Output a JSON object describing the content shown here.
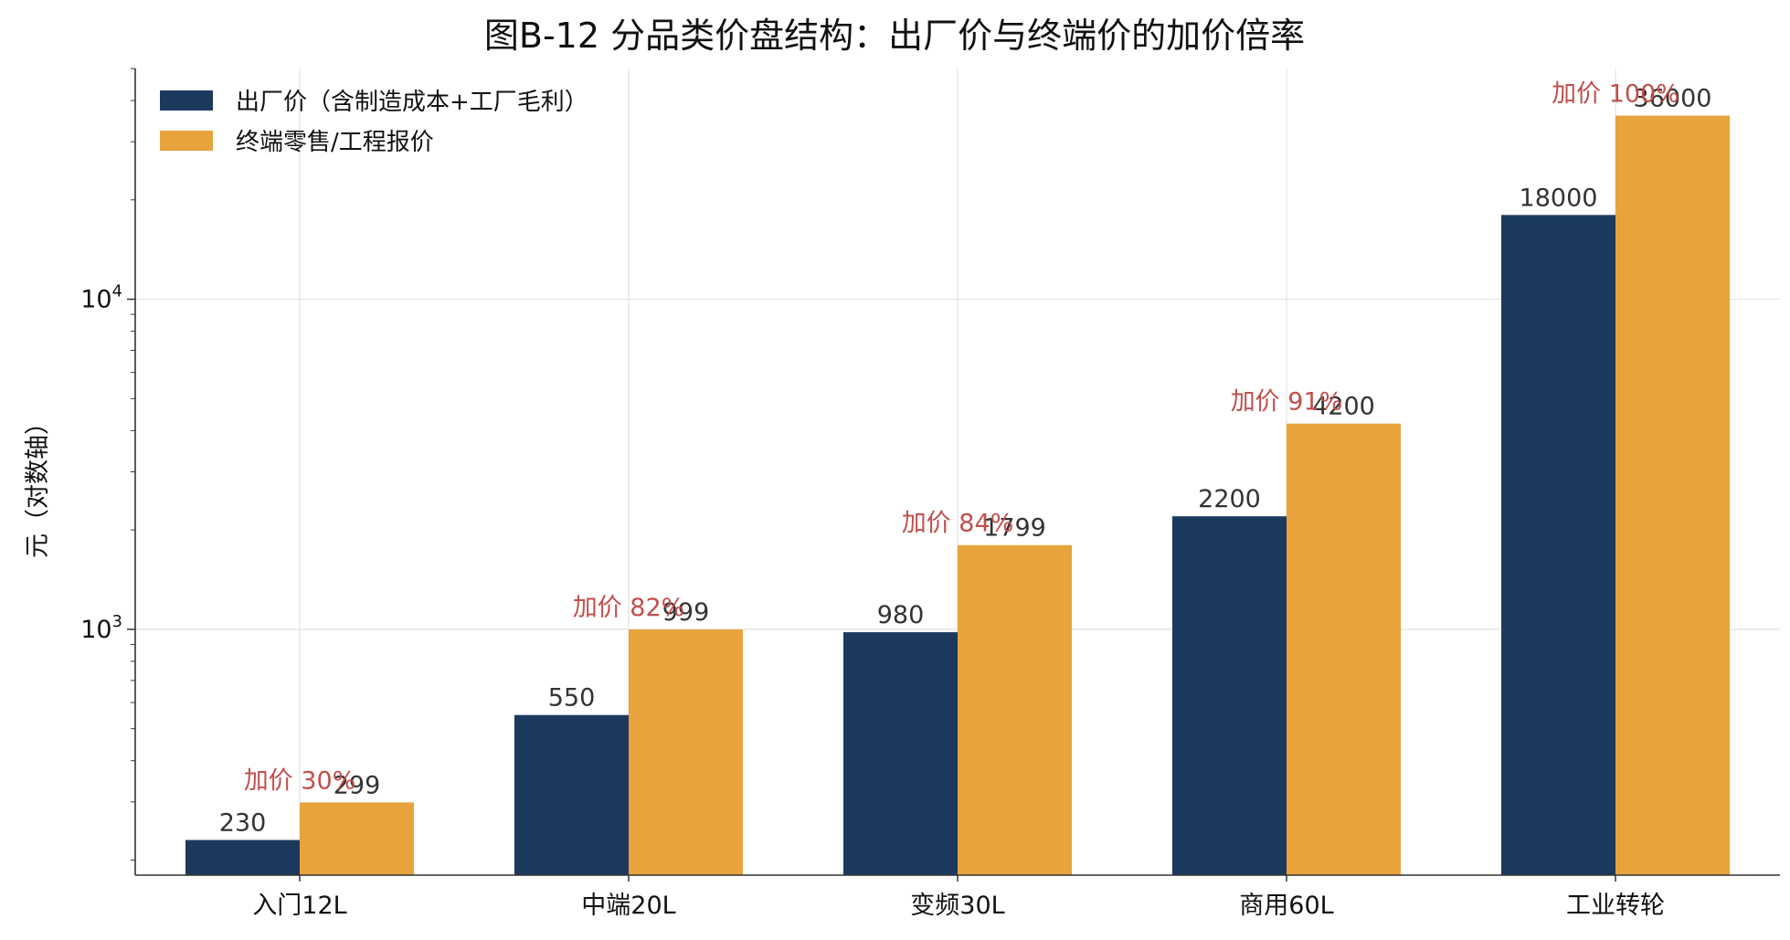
{
  "chart_data": {
    "type": "bar",
    "title": "图B-12  分品类价盘结构：出厂价与终端价的加价倍率",
    "xlabel": "",
    "ylabel": "元（对数轴）",
    "yscale": "log",
    "ylim": [
      180,
      50000
    ],
    "yticks": [
      {
        "value": 1000,
        "base": "10",
        "exp": "3"
      },
      {
        "value": 10000,
        "base": "10",
        "exp": "4"
      }
    ],
    "grid": true,
    "legend_position": "top-left",
    "categories": [
      "入门12L",
      "中端20L",
      "变频30L",
      "商用60L",
      "工业转轮"
    ],
    "series": [
      {
        "name": "出厂价（含制造成本+工厂毛利）",
        "color": "#1c3a5e",
        "values": [
          230,
          550,
          980,
          2200,
          18000
        ]
      },
      {
        "name": "终端零售/工程报价",
        "color": "#e8a33c",
        "values": [
          299,
          999,
          1799,
          4200,
          36000
        ]
      }
    ],
    "value_labels": [
      [
        "230",
        "550",
        "980",
        "2200",
        "18000"
      ],
      [
        "299",
        "999",
        "1799",
        "4200",
        "36000"
      ]
    ],
    "annotations": [
      "加价 30%",
      "加价 82%",
      "加价 84%",
      "加价 91%",
      "加价 100%"
    ],
    "annotation_color": "#c0504d"
  }
}
